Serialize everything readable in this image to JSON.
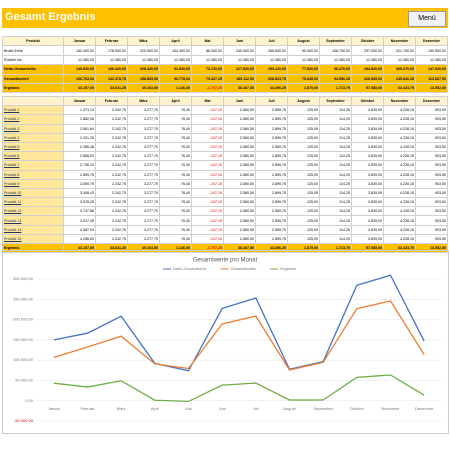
{
  "header": {
    "title": "Gesamt Ergebnis",
    "menu": "Menü"
  },
  "summary": {
    "columns": [
      "Produkt",
      "Januar",
      "Februar",
      "März",
      "April",
      "Mai",
      "Juni",
      "Juli",
      "August",
      "September",
      "Oktober",
      "November",
      "Dezember"
    ],
    "rows": [
      [
        "Brutto Erlös",
        "162.400,00",
        "178.900,00",
        "220.900,00",
        "104.400,00",
        "86.200,00",
        "240.000,00",
        "265.600,00",
        "90.000,00",
        "108.750,00",
        "297.000,00",
        "321.750,00",
        "159.500,00"
      ],
      [
        "Rückfie etc.",
        "12.480,00",
        "12.480,00",
        "12.480,00",
        "12.480,00",
        "12.480,00",
        "12.480,00",
        "12.480,00",
        "12.480,00",
        "12.480,00",
        "12.480,00",
        "12.480,00",
        "12.480,00"
      ],
      [
        "Netto-Gesamterlös",
        "149.920,00",
        "166.420,00",
        "208.420,00",
        "91.920,00",
        "73.720,00",
        "227.520,00",
        "253.120,00",
        "77.520,00",
        "96.270,00",
        "284.520,00",
        "309.270,00",
        "147.020,00"
      ],
      [
        "Gesamtkosten",
        "106.763,00",
        "132.378,75",
        "158.853,50",
        "90.778,00",
        "79.427,25",
        "189.112,50",
        "208.823,75",
        "75.645,00",
        "94.556,25",
        "226.935,00",
        "245.846,25",
        "113.667,50"
      ],
      [
        "Ergebnis",
        "43.157,00",
        "33.641,25",
        "49.163,50",
        "1.146,00",
        "-1.707,25",
        "38.407,50",
        "43.496,25",
        "1.875,00",
        "1.713,75",
        "57.585,00",
        "63.423,75",
        "13.552,50"
      ]
    ]
  },
  "products": {
    "columns": [
      "",
      "Januar",
      "Februar",
      "März",
      "April",
      "Mai",
      "Juni",
      "Juli",
      "August",
      "September",
      "Oktober",
      "November",
      "Dezember"
    ],
    "rows": [
      [
        "Produkt 1",
        "1.373,13",
        "2.242,75",
        "3.277,70",
        "76,40",
        "-247,15",
        "2.560,50",
        "2.899,75",
        "125,00",
        "114,25",
        "3.839,00",
        "4.228,15",
        "903,50"
      ],
      [
        "Produkt 2",
        "1.882,06",
        "2.242,75",
        "3.277,70",
        "76,40",
        "-247,15",
        "2.560,50",
        "2.899,75",
        "125,00",
        "114,25",
        "3.839,00",
        "4.228,15",
        "903,50"
      ],
      [
        "Produkt 3",
        "2.061,64",
        "2.242,75",
        "3.277,70",
        "76,40",
        "-247,15",
        "2.560,50",
        "2.899,75",
        "125,00",
        "114,25",
        "3.839,00",
        "4.228,15",
        "903,50"
      ],
      [
        "Produkt 4",
        "2.221,25",
        "2.242,75",
        "3.277,70",
        "76,40",
        "-247,15",
        "2.560,50",
        "2.899,75",
        "125,00",
        "114,25",
        "3.839,00",
        "4.228,15",
        "903,50"
      ],
      [
        "Produkt 5",
        "2.396,48",
        "2.242,75",
        "3.277,70",
        "76,40",
        "-247,15",
        "2.560,50",
        "2.899,75",
        "125,00",
        "114,25",
        "3.839,00",
        "4.228,15",
        "903,50"
      ],
      [
        "Produkt 6",
        "2.568,03",
        "2.242,75",
        "3.277,70",
        "76,40",
        "-247,15",
        "2.560,50",
        "2.899,75",
        "125,00",
        "114,25",
        "3.839,00",
        "4.228,15",
        "903,50"
      ],
      [
        "Produkt 7",
        "2.736,13",
        "2.242,75",
        "3.277,70",
        "76,40",
        "-247,15",
        "2.560,50",
        "2.899,75",
        "125,00",
        "114,25",
        "3.839,00",
        "4.228,15",
        "903,50"
      ],
      [
        "Produkt 8",
        "2.899,75",
        "2.242,75",
        "3.277,70",
        "76,40",
        "-247,15",
        "2.560,50",
        "2.899,75",
        "125,00",
        "114,25",
        "3.839,00",
        "4.228,15",
        "903,50"
      ],
      [
        "Produkt 9",
        "3.059,75",
        "2.242,75",
        "3.277,70",
        "76,40",
        "-247,15",
        "2.560,50",
        "2.899,75",
        "125,00",
        "114,25",
        "3.839,00",
        "4.228,15",
        "903,50"
      ],
      [
        "Produkt 10",
        "3.408,43",
        "2.242,75",
        "3.277,70",
        "76,40",
        "-247,15",
        "2.560,50",
        "2.899,75",
        "125,00",
        "114,25",
        "3.839,00",
        "4.228,15",
        "903,50"
      ],
      [
        "Produkt 11",
        "3.578,25",
        "2.242,75",
        "3.277,70",
        "76,40",
        "-247,15",
        "2.560,50",
        "2.899,75",
        "125,00",
        "114,25",
        "3.839,00",
        "4.228,15",
        "903,50"
      ],
      [
        "Produkt 12",
        "3.747,86",
        "2.242,75",
        "3.277,70",
        "76,40",
        "-247,15",
        "2.560,50",
        "2.899,75",
        "125,00",
        "114,25",
        "3.839,00",
        "4.228,15",
        "903,50"
      ],
      [
        "Produkt 13",
        "3.917,45",
        "2.242,75",
        "3.277,70",
        "76,40",
        "-247,15",
        "2.560,50",
        "2.899,75",
        "125,00",
        "114,25",
        "3.839,00",
        "4.228,15",
        "903,50"
      ],
      [
        "Produkt 14",
        "4.087,04",
        "2.242,75",
        "3.277,70",
        "76,40",
        "-247,15",
        "2.560,50",
        "2.899,75",
        "125,00",
        "114,25",
        "3.839,00",
        "4.228,15",
        "903,50"
      ],
      [
        "Produkt 15",
        "4.256,63",
        "2.242,75",
        "3.277,70",
        "76,40",
        "-247,15",
        "2.560,50",
        "2.899,75",
        "125,00",
        "114,25",
        "3.839,00",
        "4.228,15",
        "903,50"
      ],
      [
        "Ergebnis",
        "43.157,00",
        "33.641,25",
        "49.163,50",
        "1.146,00",
        "-1.707,25",
        "38.407,50",
        "43.496,25",
        "1.875,00",
        "1.713,75",
        "57.585,00",
        "63.423,75",
        "13.552,50"
      ]
    ]
  },
  "chart_data": {
    "type": "line",
    "title": "Gesamtwerte pro Monat",
    "categories": [
      "Januar",
      "Februar",
      "März",
      "April",
      "Mai",
      "Juni",
      "Juli",
      "August",
      "September",
      "Oktober",
      "November",
      "Dezember"
    ],
    "series": [
      {
        "name": "Netto-Gesamterlös",
        "color": "#4472c4",
        "values": [
          149920,
          166420,
          208420,
          91920,
          73720,
          227520,
          253120,
          77520,
          96270,
          284520,
          309270,
          147020
        ]
      },
      {
        "name": "Gesamtkosten",
        "color": "#ed7d31",
        "values": [
          106763,
          132378.75,
          158853.5,
          90778,
          79427.25,
          189112.5,
          208823.75,
          75645,
          94556.25,
          226935,
          245846.25,
          113667.5
        ]
      },
      {
        "name": "Ergebnis",
        "color": "#70ad47",
        "values": [
          43157,
          33641.25,
          49163.5,
          1146,
          -1707.25,
          38407.5,
          43496.25,
          1875,
          1713.75,
          57585,
          63423.75,
          13552.5
        ]
      }
    ],
    "ylim": [
      -50000,
      300000
    ],
    "yticks": [
      {
        "value": -50000,
        "label": "-50.000,00"
      },
      {
        "value": 0,
        "label": "0,00"
      },
      {
        "value": 50000,
        "label": "50.000,00"
      },
      {
        "value": 100000,
        "label": "100.000,00"
      },
      {
        "value": 150000,
        "label": "150.000,00"
      },
      {
        "value": 200000,
        "label": "200.000,00"
      },
      {
        "value": 250000,
        "label": "250.000,00"
      },
      {
        "value": 300000,
        "label": "300.000,00"
      }
    ],
    "grid": true,
    "legend": "top"
  }
}
